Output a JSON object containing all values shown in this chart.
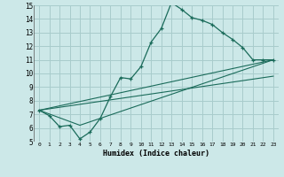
{
  "xlabel": "Humidex (Indice chaleur)",
  "xlim": [
    -0.5,
    23.5
  ],
  "ylim": [
    5,
    15
  ],
  "yticks": [
    5,
    6,
    7,
    8,
    9,
    10,
    11,
    12,
    13,
    14,
    15
  ],
  "xticks": [
    0,
    1,
    2,
    3,
    4,
    5,
    6,
    7,
    8,
    9,
    10,
    11,
    12,
    13,
    14,
    15,
    16,
    17,
    18,
    19,
    20,
    21,
    22,
    23
  ],
  "xtick_labels": [
    "0",
    "1",
    "2",
    "3",
    "4",
    "5",
    "6",
    "7",
    "8",
    "9",
    "10",
    "11",
    "12",
    "13",
    "14",
    "15",
    "16",
    "17",
    "18",
    "19",
    "20",
    "21",
    "22",
    "23"
  ],
  "background_color": "#cce8e8",
  "grid_color": "#a8cccc",
  "line_color": "#1a6b5a",
  "line1_x": [
    0,
    1,
    2,
    3,
    4,
    5,
    6,
    7,
    8,
    9,
    10,
    11,
    12,
    13,
    14,
    15,
    16,
    17,
    18,
    19,
    20,
    21,
    22,
    23
  ],
  "line1_y": [
    7.3,
    6.9,
    6.1,
    6.2,
    5.2,
    5.7,
    6.7,
    8.3,
    9.7,
    9.6,
    10.5,
    12.3,
    13.3,
    15.2,
    14.7,
    14.1,
    13.9,
    13.6,
    13.0,
    12.5,
    11.9,
    11.0,
    11.0,
    11.0
  ],
  "line2_x": [
    0,
    23
  ],
  "line2_y": [
    7.3,
    11.0
  ],
  "line3_x": [
    0,
    4,
    23
  ],
  "line3_y": [
    7.3,
    6.2,
    11.0
  ],
  "line4_x": [
    0,
    23
  ],
  "line4_y": [
    7.3,
    9.8
  ]
}
